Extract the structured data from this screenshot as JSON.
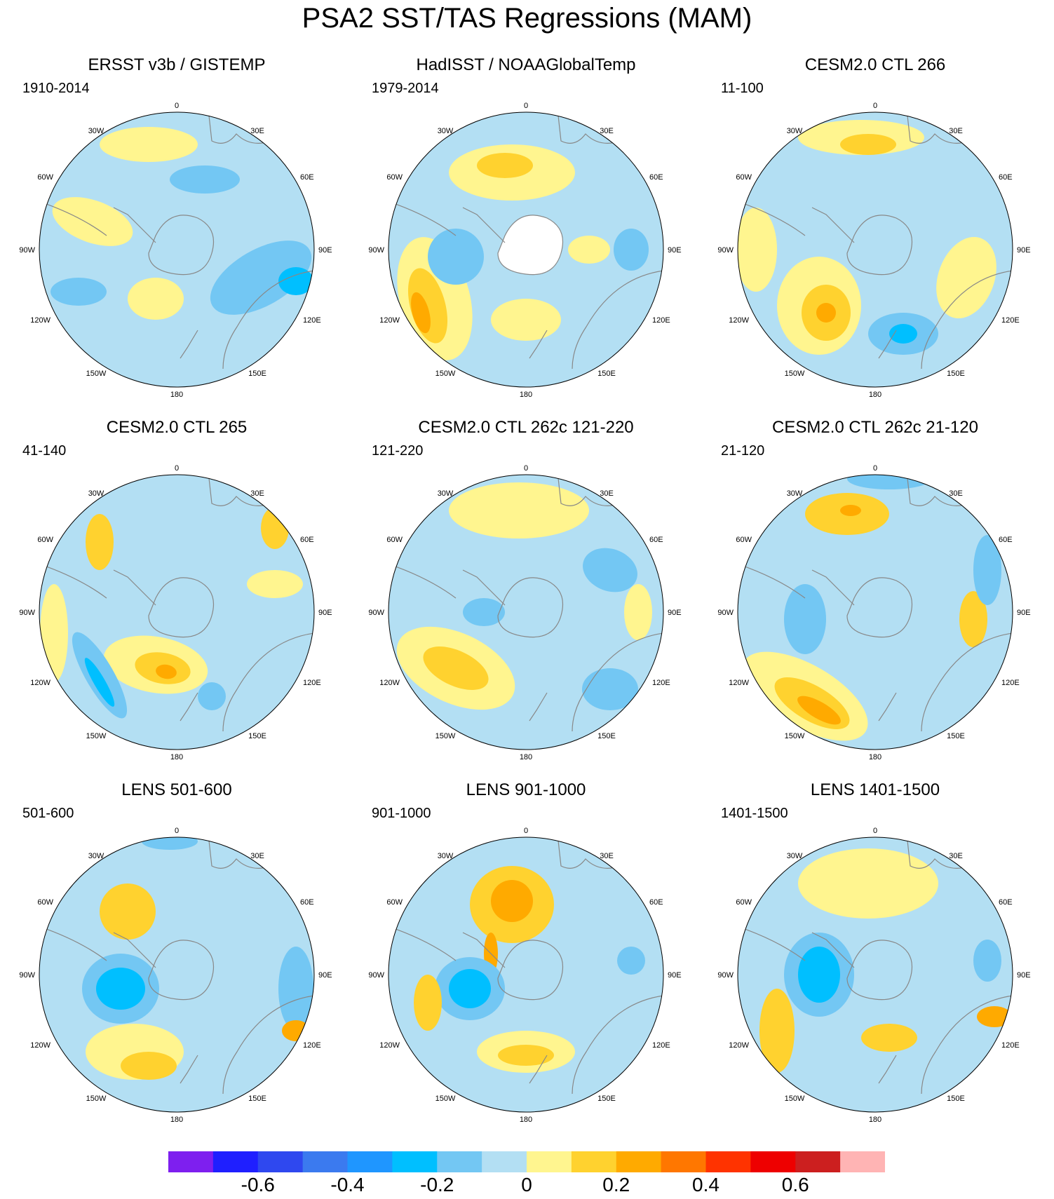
{
  "title": "PSA2 SST/TAS Regressions (MAM)",
  "lon_labels": {
    "top": "0",
    "bottom": "180",
    "30W": "30W",
    "30E": "30E",
    "60W": "60W",
    "60E": "60E",
    "90W": "90W",
    "90E": "90E",
    "120W": "120W",
    "120E": "120E",
    "150W": "150W",
    "150E": "150E"
  },
  "panels": [
    {
      "title": "ERSST v3b / GISTEMP",
      "period": "1910-2014"
    },
    {
      "title": "HadISST / NOAAGlobalTemp",
      "period": "1979-2014"
    },
    {
      "title": "CESM2.0 CTL 266",
      "period": "11-100"
    },
    {
      "title": "CESM2.0 CTL 265",
      "period": "41-140"
    },
    {
      "title": "CESM2.0 CTL 262c 121-220",
      "period": "121-220"
    },
    {
      "title": "CESM2.0 CTL 262c 21-120",
      "period": "21-120"
    },
    {
      "title": "LENS 501-600",
      "period": "501-600"
    },
    {
      "title": "LENS 901-1000",
      "period": "901-1000"
    },
    {
      "title": "LENS 1401-1500",
      "period": "1401-1500"
    }
  ],
  "colorbar": {
    "colors": [
      "#7e1fef",
      "#1f1fff",
      "#2f48ef",
      "#3b7aef",
      "#1f96ff",
      "#00bfff",
      "#73c7f3",
      "#b3dff3",
      "#fff58f",
      "#ffd22f",
      "#ffaa00",
      "#ff7700",
      "#ff3300",
      "#ee0000",
      "#cc1f1f",
      "#ffb4b4"
    ],
    "labels": [
      "-0.6",
      "-0.4",
      "-0.2",
      "0",
      "0.2",
      "0.4",
      "0.6"
    ]
  },
  "map_colors": {
    "ocean_base": "#b3dff3",
    "neg_1": "#73c7f3",
    "neg_2": "#00bfff",
    "pos_1": "#fff58f",
    "pos_2": "#ffd22f",
    "pos_3": "#ffaa00",
    "land": "#ffffff",
    "coast": "#888888"
  }
}
